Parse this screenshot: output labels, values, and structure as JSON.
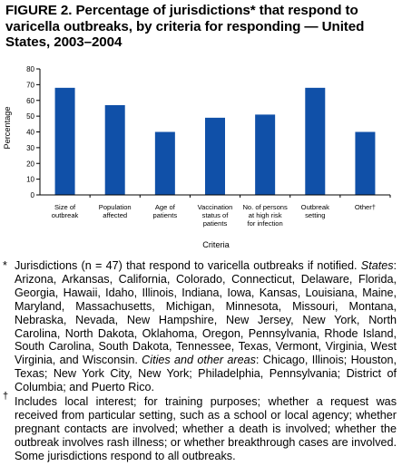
{
  "title": "FIGURE 2. Percentage of jurisdictions* that respond to varicella outbreaks, by criteria for responding — United States, 2003–2004",
  "chart_data": {
    "type": "bar",
    "categories": [
      [
        "Size of",
        "outbreak"
      ],
      [
        "Population",
        "affected"
      ],
      [
        "Age of",
        "patients"
      ],
      [
        "Vaccination",
        "status of",
        "patients"
      ],
      [
        "No. of persons",
        "at high risk",
        "for infection"
      ],
      [
        "Outbreak",
        "setting"
      ],
      [
        "Other†"
      ]
    ],
    "values": [
      68,
      57,
      40,
      49,
      51,
      68,
      40
    ],
    "xlabel": "Criteria",
    "ylabel": "Percentage",
    "ylim": [
      0,
      80
    ],
    "yticks": [
      0,
      10,
      20,
      30,
      40,
      50,
      60,
      70,
      80
    ],
    "bar_color": "#1050a8",
    "grid": false,
    "legend": "none"
  },
  "footnotes": {
    "star_mark": "*",
    "star_intro": "Jurisdictions (n = 47) that respond to varicella outbreaks if notified. ",
    "states_label": "States",
    "states_text": ": Arizona, Arkansas, California, Colorado, Connecticut, Delaware, Florida, Georgia, Hawaii, Idaho, Illinois, Indiana, Iowa, Kansas, Louisiana, Maine, Maryland, Massachusetts, Michigan, Minnesota, Missouri, Montana, Nebraska, Nevada, New Hampshire, New Jersey, New York, North Carolina, North Dakota, Oklahoma, Oregon, Pennsylvania, Rhode Island, South Carolina, South Dakota, Tennessee, Texas, Vermont, Virginia, West Virginia, and Wisconsin. ",
    "cities_label": "Cities and other areas",
    "cities_text": ": Chicago, Illinois; Houston, Texas; New York City, New York; Philadelphia, Pennsylvania; District of Columbia; and Puerto Rico.",
    "dagger_mark": "†",
    "dagger_text": "Includes local interest; for training purposes; whether a request was received from particular setting, such as a school or local agency; whether pregnant contacts are involved; whether a death is involved; whether the outbreak involves rash illness; or whether breakthrough cases are involved. Some jurisdictions respond to all outbreaks."
  }
}
